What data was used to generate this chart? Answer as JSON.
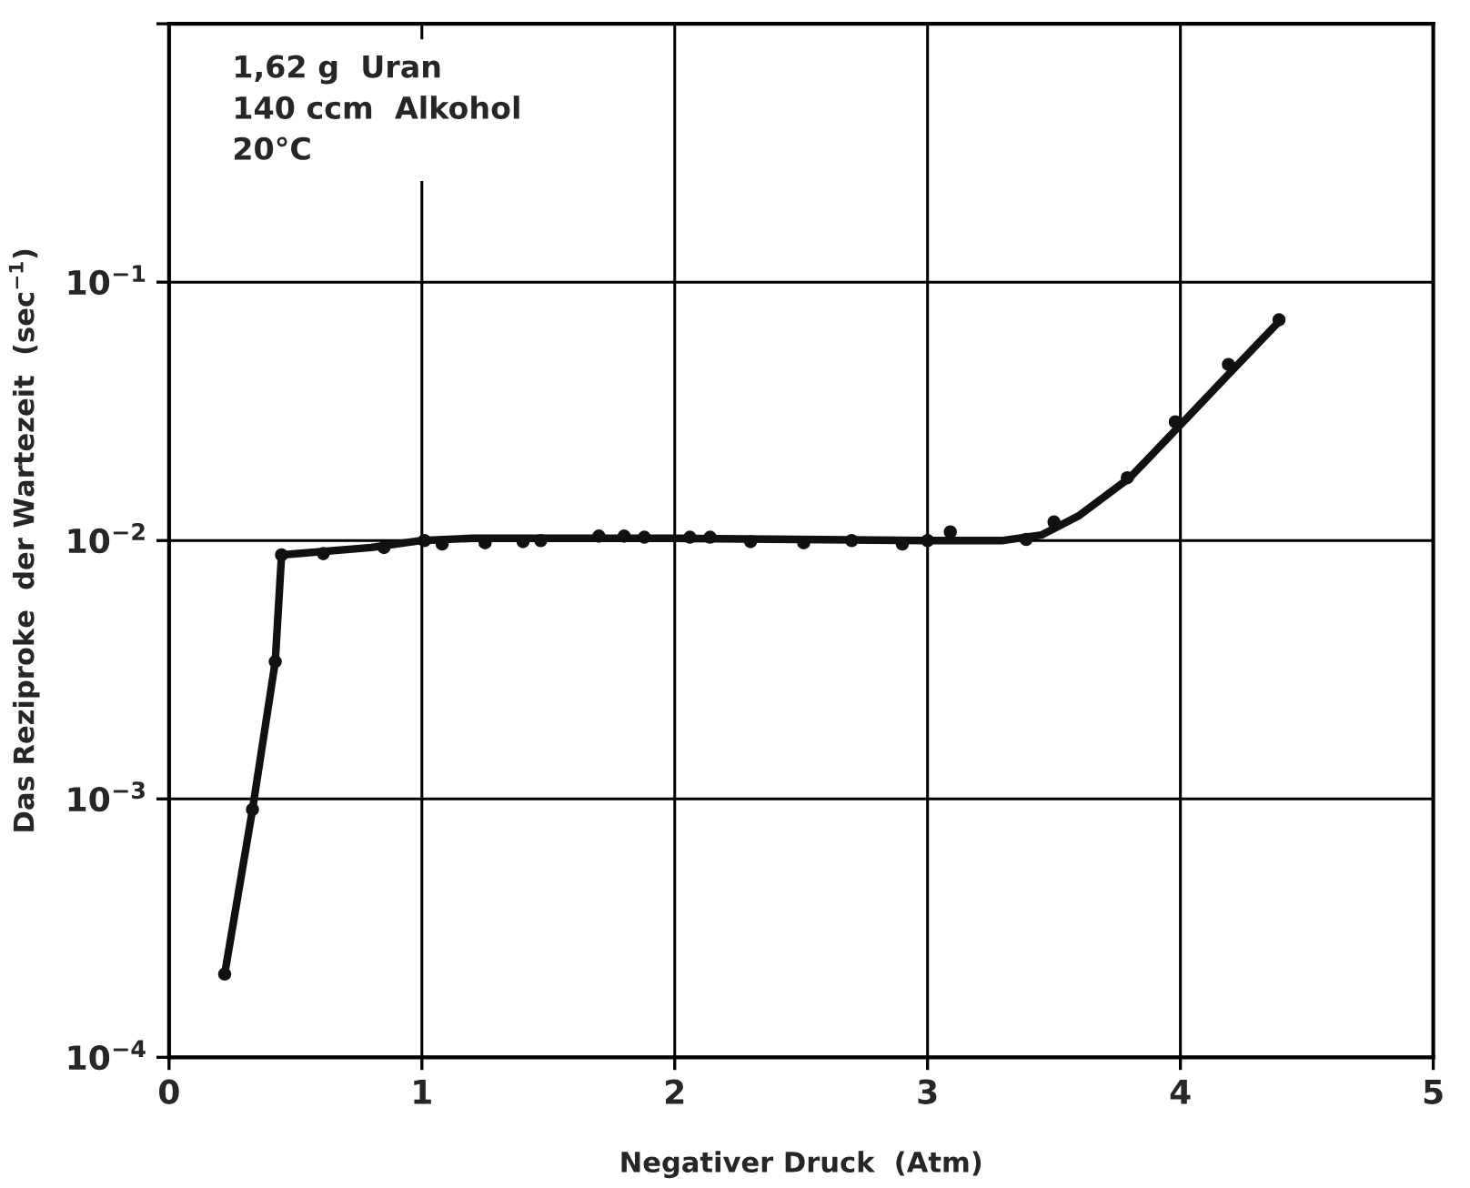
{
  "chart_data": {
    "type": "scatter",
    "xlabel": "Negativer Druck  (Atm)",
    "ylabel": "Das Reziproke  der Wartezeit  (sec$^{−1}$)",
    "annotations": [
      "1,62 g  Uran\n140 ccm  Alkohol\n20°C"
    ],
    "log": "y",
    "grid": true,
    "legend": false,
    "xlim": [
      0,
      5
    ],
    "xticks": [
      0,
      1,
      2,
      3,
      4,
      5
    ],
    "ylim": [
      0.0001,
      1
    ],
    "yticks": [
      {
        "value": 0.0001,
        "label": "10$^{−4}$"
      },
      {
        "value": 0.001,
        "label": "10$^{−3}$"
      },
      {
        "value": 0.01,
        "label": "10$^{−2}$"
      },
      {
        "value": 0.1,
        "label": "10$^{−1}$"
      },
      {
        "value": 1,
        "label": null
      }
    ],
    "series": [
      {
        "color": "#111111",
        "marker": "circle",
        "x": [
          0.22,
          0.33,
          0.42,
          0.445,
          0.61,
          0.85,
          1.01,
          1.08,
          1.25,
          1.4,
          1.47,
          1.7,
          1.8,
          1.88,
          2.06,
          2.14,
          2.3,
          2.51,
          2.7,
          2.9,
          3.0,
          3.09,
          3.39,
          3.5,
          3.79,
          3.98,
          4.19,
          4.39
        ],
        "values": [
          0.00021,
          0.00091,
          0.0034,
          0.0088,
          0.0089,
          0.0094,
          0.01,
          0.0097,
          0.0098,
          0.0099,
          0.01,
          0.0104,
          0.0104,
          0.0103,
          0.0103,
          0.0103,
          0.0099,
          0.0098,
          0.01,
          0.0097,
          0.01,
          0.0108,
          0.0101,
          0.0118,
          0.0175,
          0.0288,
          0.048,
          0.0715
        ]
      },
      {
        "type": "line",
        "color": "#111111",
        "marker": "none",
        "line_style": "solid",
        "x": [
          0.22,
          0.33,
          0.42,
          0.445,
          0.8,
          1.0,
          1.2,
          2.0,
          3.0,
          3.3,
          3.45,
          3.6,
          3.8,
          4.0,
          4.2,
          4.4
        ],
        "values": [
          0.00021,
          0.00091,
          0.0034,
          0.0088,
          0.0094,
          0.01,
          0.0102,
          0.0102,
          0.01,
          0.01,
          0.0105,
          0.0125,
          0.0175,
          0.028,
          0.045,
          0.072
        ]
      }
    ]
  }
}
